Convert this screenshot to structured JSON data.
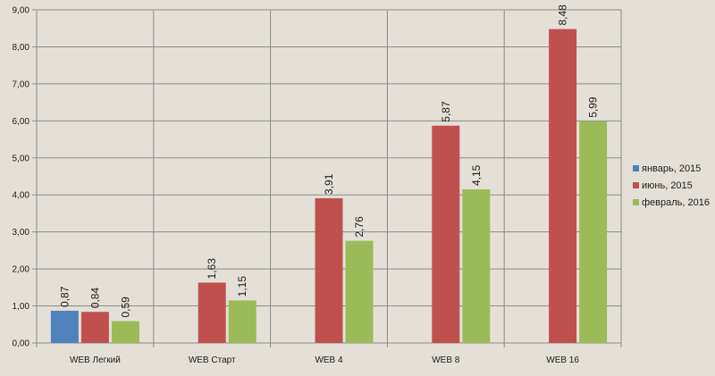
{
  "chart_data": {
    "type": "bar",
    "categories": [
      "WEB Легкий",
      "WEB Старт",
      "WEB 4",
      "WEB 8",
      "WEB 16"
    ],
    "series": [
      {
        "name": "январь, 2015",
        "color": "#4f81bd",
        "values": [
          0.87,
          null,
          null,
          null,
          null
        ],
        "labels": [
          "0,87",
          "",
          "",
          "",
          ""
        ]
      },
      {
        "name": "июнь, 2015",
        "color": "#c0504d",
        "values": [
          0.84,
          1.63,
          3.91,
          5.87,
          8.48
        ],
        "labels": [
          "0,84",
          "1,63",
          "3,91",
          "5,87",
          "8,48"
        ]
      },
      {
        "name": "февраль, 2016",
        "color": "#9bbb59",
        "values": [
          0.59,
          1.15,
          2.76,
          4.15,
          5.99
        ],
        "labels": [
          "0,59",
          "1,15",
          "2,76",
          "4,15",
          "5,99"
        ]
      }
    ],
    "yticks": [
      0,
      1,
      2,
      3,
      4,
      5,
      6,
      7,
      8,
      9
    ],
    "ytick_labels": [
      "0,00",
      "1,00",
      "2,00",
      "3,00",
      "4,00",
      "5,00",
      "6,00",
      "7,00",
      "8,00",
      "9,00"
    ],
    "ylim": [
      0,
      9
    ],
    "title": "",
    "xlabel": "",
    "ylabel": "",
    "grid": true,
    "legend_position": "right"
  }
}
